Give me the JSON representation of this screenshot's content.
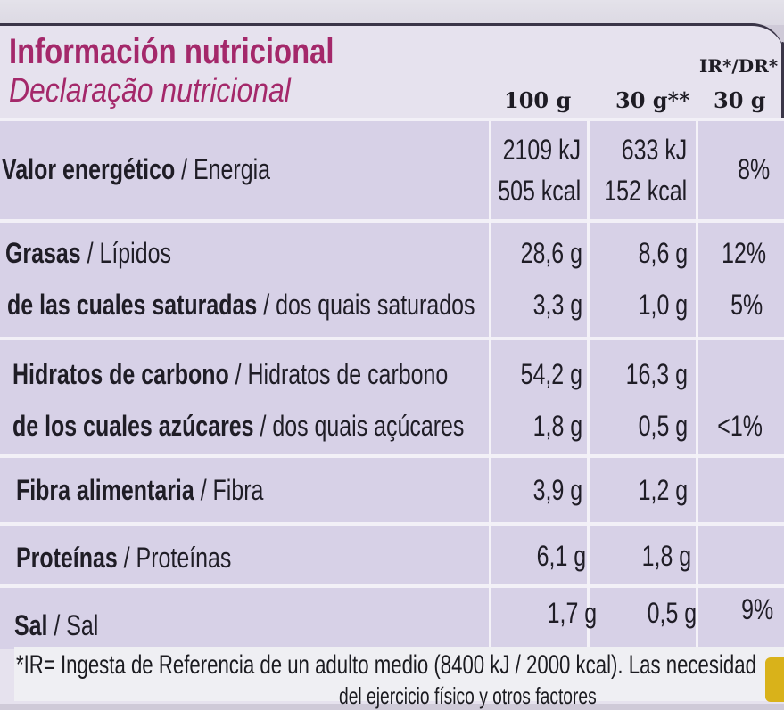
{
  "header": {
    "title_es": "Información nutricional",
    "title_pt": "Declaração nutricional"
  },
  "columns": {
    "per100": "100 g",
    "per30": "30 g**",
    "ir_line1": "IR*/DR*",
    "ir_line2": "30 g"
  },
  "rows": [
    {
      "es": "Valor energético",
      "pt": "Energia",
      "v100": "2109 kJ",
      "v100b": "505 kcal",
      "v30": "633 kJ",
      "v30b": "152 kcal",
      "ir": "8%"
    },
    {
      "es": "Grasas",
      "pt": "Lípidos",
      "v100": "28,6 g",
      "v30": "8,6 g",
      "ir": "12%"
    },
    {
      "es": "de las cuales saturadas",
      "pt": "dos quais saturados",
      "v100": "3,3 g",
      "v30": "1,0 g",
      "ir": "5%"
    },
    {
      "es": "Hidratos de carbono",
      "pt": "Hidratos de carbono",
      "v100": "54,2 g",
      "v30": "16,3 g",
      "ir": ""
    },
    {
      "es": "de los cuales azúcares",
      "pt": "dos quais açúcares",
      "v100": "1,8 g",
      "v30": "0,5 g",
      "ir": "<1%"
    },
    {
      "es": "Fibra alimentaria",
      "pt": "Fibra",
      "v100": "3,9 g",
      "v30": "1,2 g",
      "ir": ""
    },
    {
      "es": "Proteínas",
      "pt": "Proteínas",
      "v100": "6,1 g",
      "v30": "1,8 g",
      "ir": ""
    },
    {
      "es": "Sal",
      "pt": "Sal",
      "v100": "1,7 g",
      "v30": "0,5 g",
      "ir": "9%"
    }
  ],
  "sep": " / ",
  "footnote": {
    "line1": "*IR= Ingesta de Referencia de un adulto medio (8400 kJ / 2000 kcal). Las necesidad",
    "line2": "del ejercicio físico y otros factores"
  }
}
